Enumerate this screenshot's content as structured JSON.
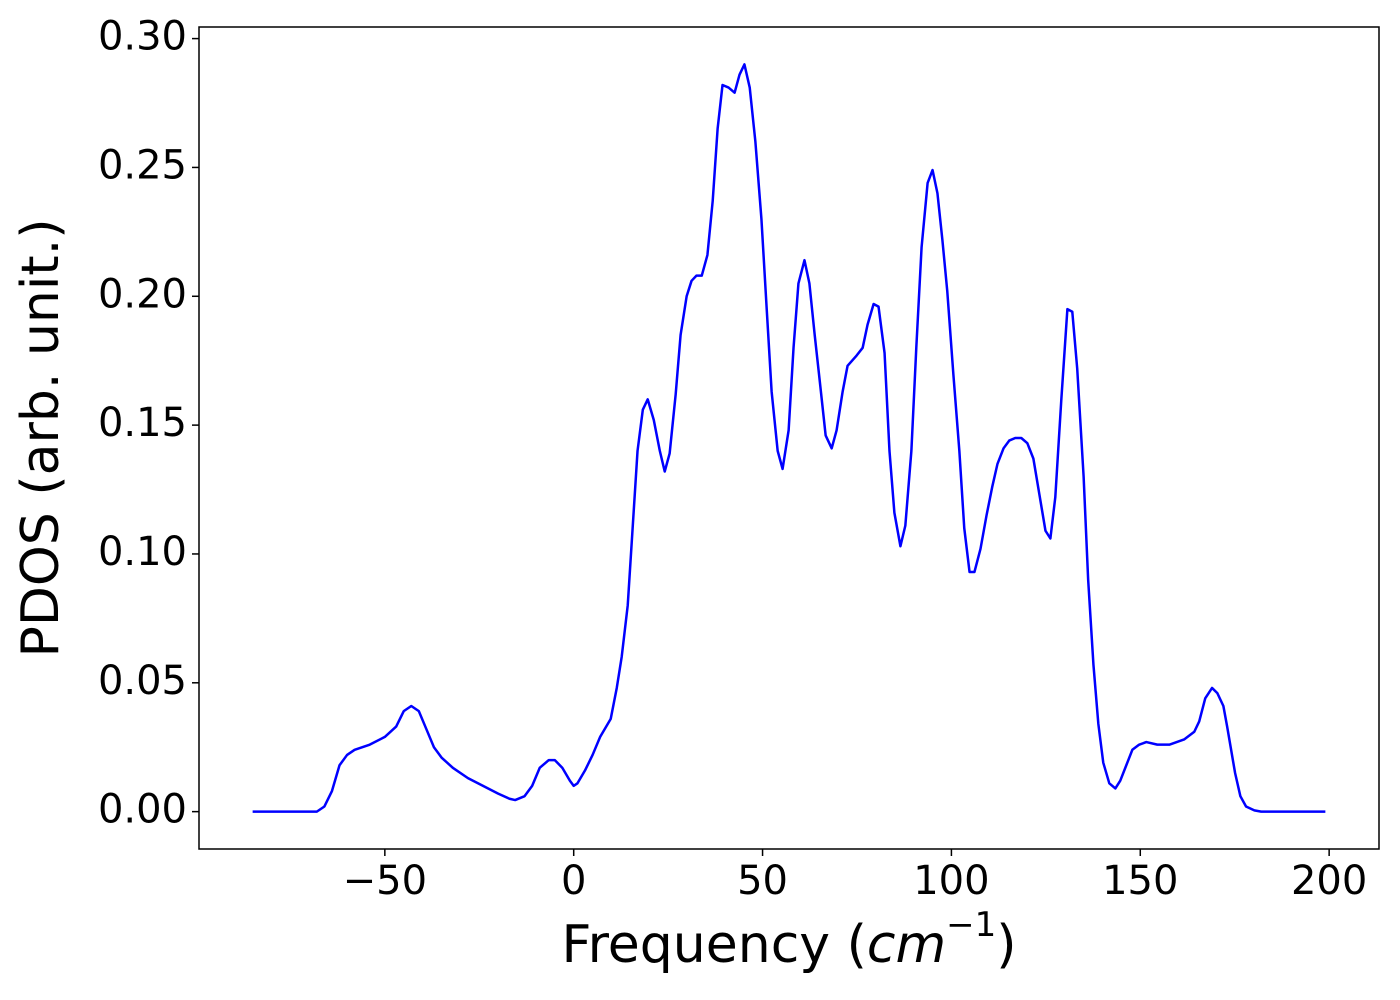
{
  "chart_data": {
    "type": "line",
    "xlabel": [
      "Frequency (",
      "cm",
      "−1",
      ")"
    ],
    "ylabel": "PDOS (arb. unit.)",
    "xlim": [
      -99.2,
      213.2
    ],
    "ylim": [
      -0.0145,
      0.3045
    ],
    "xticks": [
      {
        "value": -50,
        "label": "−50"
      },
      0,
      50,
      100,
      150,
      200
    ],
    "yticks": [
      {
        "value": 0,
        "label": "0.00"
      },
      {
        "value": 0.05,
        "label": "0.05"
      },
      {
        "value": 0.1,
        "label": "0.10"
      },
      {
        "value": 0.15,
        "label": "0.15"
      },
      {
        "value": 0.2,
        "label": "0.20"
      },
      {
        "value": 0.25,
        "label": "0.25"
      },
      {
        "value": 0.3,
        "label": "0.30"
      }
    ],
    "grid": false,
    "series": [
      {
        "color": "#0000ff",
        "x": [
          -85,
          -68,
          -66,
          -64,
          -62,
          -60,
          -58,
          -54,
          -50,
          -47,
          -45,
          -43,
          -41,
          -39,
          -37,
          -35,
          -32,
          -28,
          -24,
          -20,
          -17,
          -15.5,
          -13,
          -11,
          -9,
          -6.6,
          -5,
          -3,
          -1,
          0,
          1,
          3,
          5,
          7,
          9.8,
          11.4,
          12.7,
          14.3,
          15.6,
          16.9,
          18.3,
          19.6,
          21.2,
          22.8,
          24.1,
          25.4,
          27,
          28.3,
          29.9,
          31.2,
          32.5,
          33.9,
          35.4,
          36.8,
          38.1,
          39.4,
          41,
          42.6,
          43.9,
          45.2,
          46.6,
          48.1,
          49.7,
          51.1,
          52.4,
          54,
          55.3,
          56.9,
          58.2,
          59.5,
          61.1,
          62.4,
          63.8,
          65.3,
          66.7,
          68.3,
          69.6,
          71.2,
          72.5,
          74.9,
          76.5,
          77.8,
          79.4,
          80.7,
          82.3,
          83.6,
          84.9,
          86.5,
          87.8,
          89.4,
          90.7,
          92.1,
          93.7,
          95.0,
          96.3,
          97.6,
          98.9,
          100.5,
          102.1,
          103.4,
          104.8,
          106.1,
          107.7,
          109.3,
          110.8,
          112.2,
          113.8,
          115.3,
          116.9,
          118.5,
          120.1,
          121.7,
          123.3,
          124.9,
          126.2,
          127.5,
          129.1,
          130.7,
          132,
          133.3,
          135,
          136.2,
          137.6,
          138.9,
          140.2,
          141.8,
          143.4,
          144.7,
          146.3,
          147.9,
          149.7,
          151.6,
          154.5,
          157.7,
          161.6,
          164.3,
          165.6,
          167.2,
          169,
          170.4,
          172,
          173,
          175.1,
          176.5,
          178,
          180.2,
          182,
          199
        ],
        "values": [
          0,
          0,
          0.002,
          0.008,
          0.018,
          0.022,
          0.024,
          0.026,
          0.029,
          0.033,
          0.039,
          0.041,
          0.039,
          0.032,
          0.025,
          0.021,
          0.017,
          0.013,
          0.01,
          0.007,
          0.005,
          0.0045,
          0.006,
          0.01,
          0.017,
          0.02,
          0.02,
          0.017,
          0.012,
          0.01,
          0.011,
          0.016,
          0.022,
          0.029,
          0.036,
          0.048,
          0.06,
          0.08,
          0.11,
          0.14,
          0.156,
          0.16,
          0.152,
          0.14,
          0.132,
          0.139,
          0.162,
          0.185,
          0.2,
          0.206,
          0.208,
          0.208,
          0.216,
          0.237,
          0.265,
          0.282,
          0.281,
          0.279,
          0.286,
          0.29,
          0.281,
          0.26,
          0.23,
          0.195,
          0.163,
          0.14,
          0.133,
          0.148,
          0.18,
          0.205,
          0.214,
          0.205,
          0.185,
          0.165,
          0.146,
          0.141,
          0.148,
          0.163,
          0.173,
          0.177,
          0.18,
          0.189,
          0.197,
          0.196,
          0.178,
          0.14,
          0.116,
          0.103,
          0.111,
          0.14,
          0.18,
          0.219,
          0.244,
          0.249,
          0.24,
          0.222,
          0.202,
          0.17,
          0.14,
          0.11,
          0.093,
          0.093,
          0.102,
          0.115,
          0.126,
          0.135,
          0.141,
          0.144,
          0.145,
          0.145,
          0.143,
          0.137,
          0.123,
          0.109,
          0.106,
          0.122,
          0.16,
          0.195,
          0.194,
          0.172,
          0.13,
          0.09,
          0.057,
          0.034,
          0.019,
          0.011,
          0.009,
          0.012,
          0.018,
          0.024,
          0.026,
          0.027,
          0.026,
          0.026,
          0.028,
          0.031,
          0.035,
          0.044,
          0.048,
          0.046,
          0.041,
          0.033,
          0.015,
          0.006,
          0.002,
          0.0005,
          0,
          0
        ]
      }
    ]
  }
}
